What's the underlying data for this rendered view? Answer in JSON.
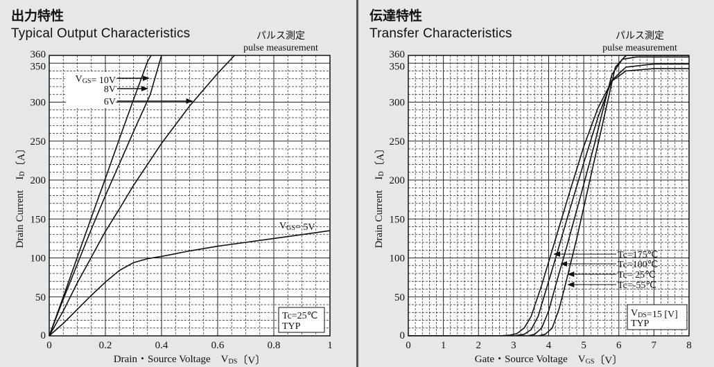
{
  "left": {
    "title_jp": "出力特性",
    "title_en": "Typical Output Characteristics",
    "chart_data": {
      "type": "line",
      "xlabel": "Drain・Source Voltage　VDS〔V〕",
      "ylabel": "Drain Current　ID〔A〕",
      "xlim": [
        0,
        1
      ],
      "ylim": [
        0,
        360
      ],
      "xticks": [
        "0",
        "0.2",
        "0.4",
        "0.6",
        "0.8",
        "1"
      ],
      "yticks": [
        "0",
        "50",
        "100",
        "150",
        "200",
        "250",
        "300",
        "350",
        "360"
      ],
      "grid": true,
      "note": [
        "パルス測定",
        "pulse measurement"
      ],
      "box": [
        "Tc=25℃",
        "TYP"
      ],
      "series": [
        {
          "name": "VGS= 10V",
          "x": [
            0,
            0.05,
            0.1,
            0.15,
            0.2,
            0.25,
            0.3,
            0.35,
            0.363
          ],
          "y": [
            0,
            50,
            101,
            152,
            202,
            253,
            303,
            352,
            360
          ]
        },
        {
          "name": "8V",
          "x": [
            0,
            0.05,
            0.1,
            0.15,
            0.2,
            0.25,
            0.3,
            0.35,
            0.36,
            0.4
          ],
          "y": [
            0,
            47,
            92,
            137,
            180,
            221,
            262,
            302,
            310,
            360
          ]
        },
        {
          "name": "6V",
          "x": [
            0,
            0.05,
            0.1,
            0.15,
            0.2,
            0.25,
            0.3,
            0.4,
            0.5,
            0.6,
            0.66
          ],
          "y": [
            0,
            32,
            68,
            101,
            134,
            163,
            193,
            247,
            295,
            337,
            360
          ]
        },
        {
          "name": "VGS= 5V",
          "x": [
            0,
            0.05,
            0.1,
            0.15,
            0.2,
            0.25,
            0.3,
            0.35,
            0.4,
            0.5,
            0.6,
            0.7,
            0.8,
            0.9,
            1.0
          ],
          "y": [
            0,
            16,
            34,
            52,
            69,
            84,
            94,
            99,
            102,
            109,
            115,
            120,
            125,
            130,
            135
          ]
        }
      ]
    }
  },
  "right": {
    "title_jp": "伝達特性",
    "title_en": "Transfer Characteristics",
    "chart_data": {
      "type": "line",
      "xlabel": "Gate・Source Voltage　VGS〔V〕",
      "ylabel": "Drain Current　ID〔A〕",
      "xlim": [
        0,
        8
      ],
      "ylim": [
        0,
        360
      ],
      "xticks": [
        "0",
        "1",
        "2",
        "3",
        "4",
        "5",
        "6",
        "7",
        "8"
      ],
      "yticks": [
        "0",
        "50",
        "100",
        "150",
        "200",
        "250",
        "300",
        "350",
        "360"
      ],
      "grid": true,
      "note": [
        "パルス測定",
        "pulse measurement"
      ],
      "box": [
        "VDS=15 [V]",
        "TYP"
      ],
      "series": [
        {
          "name": "Tc=175℃",
          "x": [
            0,
            2.6,
            2.9,
            3.1,
            3.3,
            3.5,
            3.8,
            4.2,
            4.6,
            5.0,
            5.4,
            5.8,
            6.2,
            7.0,
            8.0
          ],
          "y": [
            0,
            0,
            1,
            3,
            10,
            25,
            65,
            125,
            185,
            243,
            292,
            327,
            340,
            343,
            343
          ]
        },
        {
          "name": "Tc=100℃",
          "x": [
            0,
            3.0,
            3.3,
            3.5,
            3.7,
            3.9,
            4.2,
            4.6,
            5.0,
            5.4,
            5.8,
            6.2,
            7.0,
            8.0
          ],
          "y": [
            0,
            0,
            2,
            8,
            25,
            55,
            100,
            162,
            222,
            280,
            328,
            345,
            349,
            349
          ]
        },
        {
          "name": "Tc= 25℃",
          "x": [
            0,
            3.4,
            3.6,
            3.8,
            4.0,
            4.2,
            4.5,
            4.9,
            5.3,
            5.6,
            5.8,
            6.1,
            6.5,
            7.0,
            8.0
          ],
          "y": [
            0,
            0,
            2,
            10,
            32,
            65,
            112,
            178,
            245,
            300,
            335,
            355,
            358,
            358,
            358
          ]
        },
        {
          "name": "Tc=-55℃",
          "x": [
            0,
            3.7,
            3.9,
            4.1,
            4.3,
            4.5,
            4.8,
            5.1,
            5.4,
            5.7,
            5.9,
            6.2,
            6.6,
            7.0,
            8.0
          ],
          "y": [
            0,
            0,
            2,
            10,
            35,
            70,
            125,
            185,
            245,
            305,
            345,
            360,
            360,
            360,
            360
          ]
        }
      ]
    }
  }
}
